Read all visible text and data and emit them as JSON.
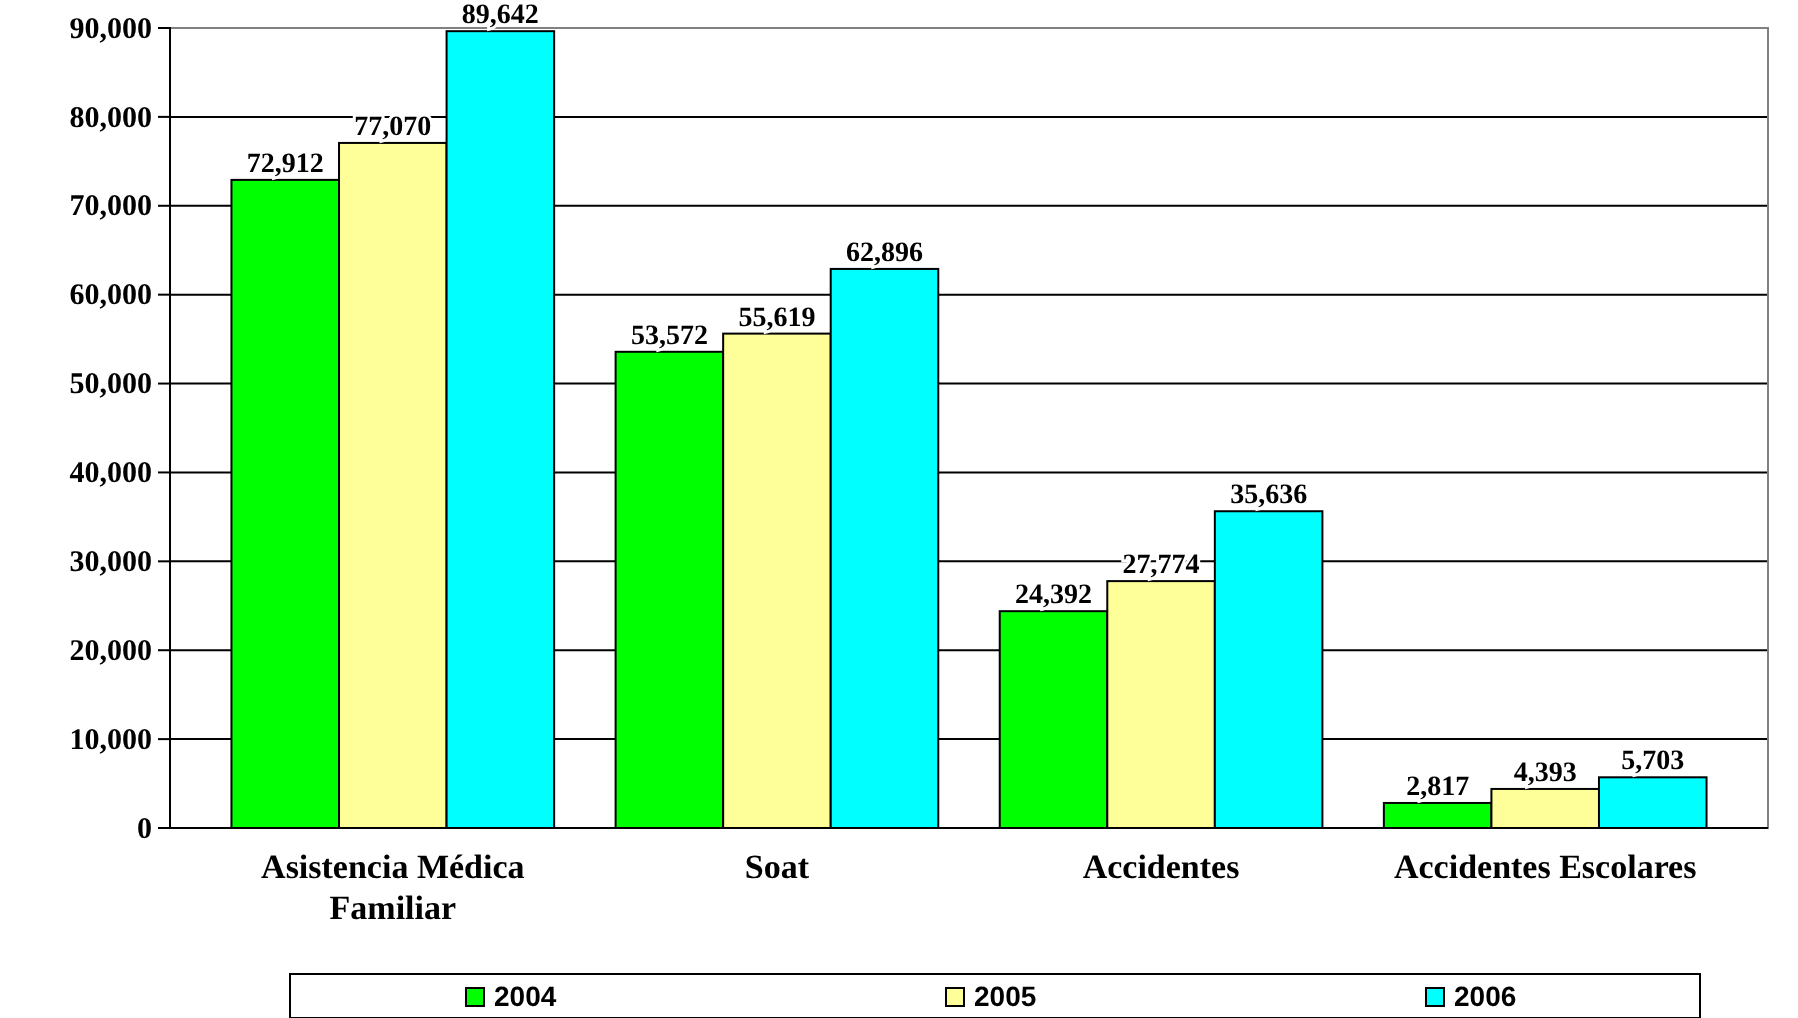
{
  "chart_data": {
    "type": "bar",
    "categories": [
      "Asistencia Médica Familiar",
      "Soat",
      "Accidentes",
      "Accidentes Escolares"
    ],
    "series": [
      {
        "name": "2004",
        "color": "#00ff00",
        "values": [
          72912,
          53572,
          24392,
          2817
        ],
        "value_labels": [
          "72,912",
          "53,572",
          "24,392",
          "2,817"
        ]
      },
      {
        "name": "2005",
        "color": "#ffff99",
        "values": [
          77070,
          55619,
          27774,
          4393
        ],
        "value_labels": [
          "77,070",
          "55,619",
          "27,774",
          "4,393"
        ]
      },
      {
        "name": "2006",
        "color": "#00ffff",
        "values": [
          89642,
          62896,
          35636,
          5703
        ],
        "value_labels": [
          "89,642",
          "62,896",
          "35,636",
          "5,703"
        ]
      }
    ],
    "ylim": [
      0,
      90000
    ],
    "yticks": [
      {
        "value": 0,
        "label": "0"
      },
      {
        "value": 10000,
        "label": "10,000"
      },
      {
        "value": 20000,
        "label": "20,000"
      },
      {
        "value": 30000,
        "label": "30,000"
      },
      {
        "value": 40000,
        "label": "40,000"
      },
      {
        "value": 50000,
        "label": "50,000"
      },
      {
        "value": 60000,
        "label": "60,000"
      },
      {
        "value": 70000,
        "label": "70,000"
      },
      {
        "value": 80000,
        "label": "80,000"
      },
      {
        "value": 90000,
        "label": "90,000"
      }
    ],
    "grid": "y",
    "legend": "bottom"
  }
}
